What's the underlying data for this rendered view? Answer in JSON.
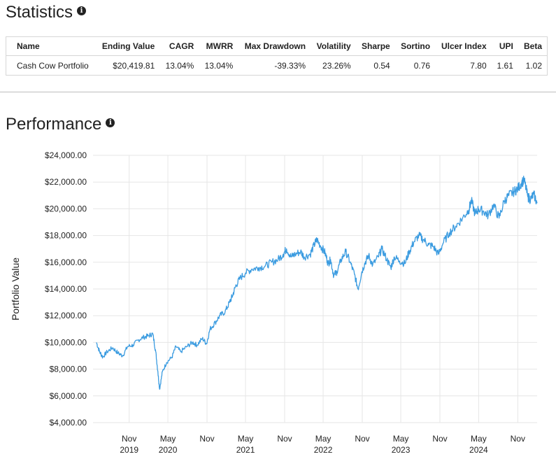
{
  "statistics": {
    "title": "Statistics",
    "columns": [
      "Name",
      "Ending Value",
      "CAGR",
      "MWRR",
      "Max Drawdown",
      "Volatility",
      "Sharpe",
      "Sortino",
      "Ulcer Index",
      "UPI",
      "Beta"
    ],
    "rows": [
      [
        "Cash Cow Portfolio",
        "$20,419.81",
        "13.04%",
        "13.04%",
        "-39.33%",
        "23.26%",
        "0.54",
        "0.76",
        "7.80",
        "1.61",
        "1.02"
      ]
    ]
  },
  "performance": {
    "title": "Performance"
  },
  "colors": {
    "line": "#3a9be0",
    "grid": "#e6e6e6"
  },
  "chart_data": {
    "type": "line",
    "title": "",
    "xlabel": "",
    "ylabel": "Portfolio Value",
    "ylim": [
      4000,
      24000
    ],
    "y_ticks": [
      "$4,000.00",
      "$6,000.00",
      "$8,000.00",
      "$10,000.00",
      "$12,000.00",
      "$14,000.00",
      "$16,000.00",
      "$18,000.00",
      "$20,000.00",
      "$22,000.00",
      "$24,000.00"
    ],
    "x_range": [
      "2019-05-15",
      "2025-01-31"
    ],
    "x_ticks": [
      {
        "date": "2019-11-01",
        "label": "Nov",
        "year": "2019"
      },
      {
        "date": "2020-05-01",
        "label": "May",
        "year": "2020"
      },
      {
        "date": "2020-11-01",
        "label": "Nov",
        "year": ""
      },
      {
        "date": "2021-05-01",
        "label": "May",
        "year": "2021"
      },
      {
        "date": "2021-11-01",
        "label": "Nov",
        "year": ""
      },
      {
        "date": "2022-05-01",
        "label": "May",
        "year": "2022"
      },
      {
        "date": "2022-11-01",
        "label": "Nov",
        "year": ""
      },
      {
        "date": "2023-05-01",
        "label": "May",
        "year": "2023"
      },
      {
        "date": "2023-11-01",
        "label": "Nov",
        "year": ""
      },
      {
        "date": "2024-05-01",
        "label": "May",
        "year": "2024"
      },
      {
        "date": "2024-11-01",
        "label": "Nov",
        "year": ""
      }
    ],
    "series": [
      {
        "points": [
          [
            "2019-05-31",
            10000
          ],
          [
            "2019-06-15",
            9300
          ],
          [
            "2019-06-30",
            8900
          ],
          [
            "2019-07-20",
            9300
          ],
          [
            "2019-08-15",
            9600
          ],
          [
            "2019-09-10",
            9200
          ],
          [
            "2019-10-01",
            9000
          ],
          [
            "2019-10-25",
            9700
          ],
          [
            "2019-11-20",
            9800
          ],
          [
            "2019-12-15",
            10200
          ],
          [
            "2020-01-10",
            10400
          ],
          [
            "2020-01-31",
            10500
          ],
          [
            "2020-02-20",
            10650
          ],
          [
            "2020-03-05",
            9300
          ],
          [
            "2020-03-15",
            7800
          ],
          [
            "2020-03-23",
            6500
          ],
          [
            "2020-04-05",
            7800
          ],
          [
            "2020-04-25",
            8500
          ],
          [
            "2020-05-20",
            8900
          ],
          [
            "2020-06-08",
            9700
          ],
          [
            "2020-06-30",
            9300
          ],
          [
            "2020-07-30",
            9700
          ],
          [
            "2020-08-25",
            10000
          ],
          [
            "2020-09-15",
            9800
          ],
          [
            "2020-10-10",
            10300
          ],
          [
            "2020-10-30",
            9900
          ],
          [
            "2020-11-15",
            11000
          ],
          [
            "2020-12-10",
            11500
          ],
          [
            "2020-12-31",
            12000
          ],
          [
            "2021-01-25",
            12300
          ],
          [
            "2021-02-15",
            13000
          ],
          [
            "2021-03-01",
            13500
          ],
          [
            "2021-03-15",
            14200
          ],
          [
            "2021-04-05",
            14800
          ],
          [
            "2021-05-01",
            15200
          ],
          [
            "2021-06-01",
            15500
          ],
          [
            "2021-07-01",
            15600
          ],
          [
            "2021-08-01",
            15700
          ],
          [
            "2021-09-01",
            16000
          ],
          [
            "2021-10-01",
            16200
          ],
          [
            "2021-10-25",
            16600
          ],
          [
            "2021-11-10",
            17000
          ],
          [
            "2021-12-01",
            16400
          ],
          [
            "2021-12-20",
            16600
          ],
          [
            "2022-01-15",
            16800
          ],
          [
            "2022-02-01",
            16400
          ],
          [
            "2022-03-01",
            16600
          ],
          [
            "2022-03-20",
            17300
          ],
          [
            "2022-04-01",
            17700
          ],
          [
            "2022-04-20",
            17200
          ],
          [
            "2022-05-10",
            16700
          ],
          [
            "2022-05-25",
            15900
          ],
          [
            "2022-06-05",
            16200
          ],
          [
            "2022-06-20",
            15000
          ],
          [
            "2022-07-05",
            15300
          ],
          [
            "2022-07-25",
            16200
          ],
          [
            "2022-08-15",
            16800
          ],
          [
            "2022-09-05",
            16000
          ],
          [
            "2022-09-25",
            15100
          ],
          [
            "2022-10-12",
            14000
          ],
          [
            "2022-10-30",
            15300
          ],
          [
            "2022-11-15",
            16000
          ],
          [
            "2022-12-01",
            16500
          ],
          [
            "2022-12-20",
            15800
          ],
          [
            "2023-01-15",
            16400
          ],
          [
            "2023-02-01",
            17000
          ],
          [
            "2023-02-25",
            16200
          ],
          [
            "2023-03-15",
            15600
          ],
          [
            "2023-04-01",
            16400
          ],
          [
            "2023-04-25",
            16100
          ],
          [
            "2023-05-20",
            15900
          ],
          [
            "2023-06-10",
            16800
          ],
          [
            "2023-07-01",
            17500
          ],
          [
            "2023-07-25",
            18000
          ],
          [
            "2023-08-15",
            17700
          ],
          [
            "2023-09-10",
            17300
          ],
          [
            "2023-09-30",
            17200
          ],
          [
            "2023-10-25",
            16600
          ],
          [
            "2023-11-15",
            17400
          ],
          [
            "2023-12-15",
            18200
          ],
          [
            "2024-01-15",
            18700
          ],
          [
            "2024-02-15",
            19300
          ],
          [
            "2024-03-15",
            19900
          ],
          [
            "2024-03-28",
            20600
          ],
          [
            "2024-04-15",
            19600
          ],
          [
            "2024-05-01",
            20000
          ],
          [
            "2024-05-25",
            19800
          ],
          [
            "2024-06-15",
            19500
          ],
          [
            "2024-07-10",
            20300
          ],
          [
            "2024-08-05",
            19300
          ],
          [
            "2024-08-30",
            20600
          ],
          [
            "2024-09-20",
            21000
          ],
          [
            "2024-10-15",
            21300
          ],
          [
            "2024-11-01",
            21500
          ],
          [
            "2024-11-20",
            22000
          ],
          [
            "2024-12-02",
            22100
          ],
          [
            "2024-12-18",
            20900
          ],
          [
            "2024-12-31",
            20700
          ],
          [
            "2025-01-15",
            21100
          ],
          [
            "2025-01-31",
            20420
          ]
        ]
      }
    ],
    "grid": true,
    "legend": "none"
  }
}
